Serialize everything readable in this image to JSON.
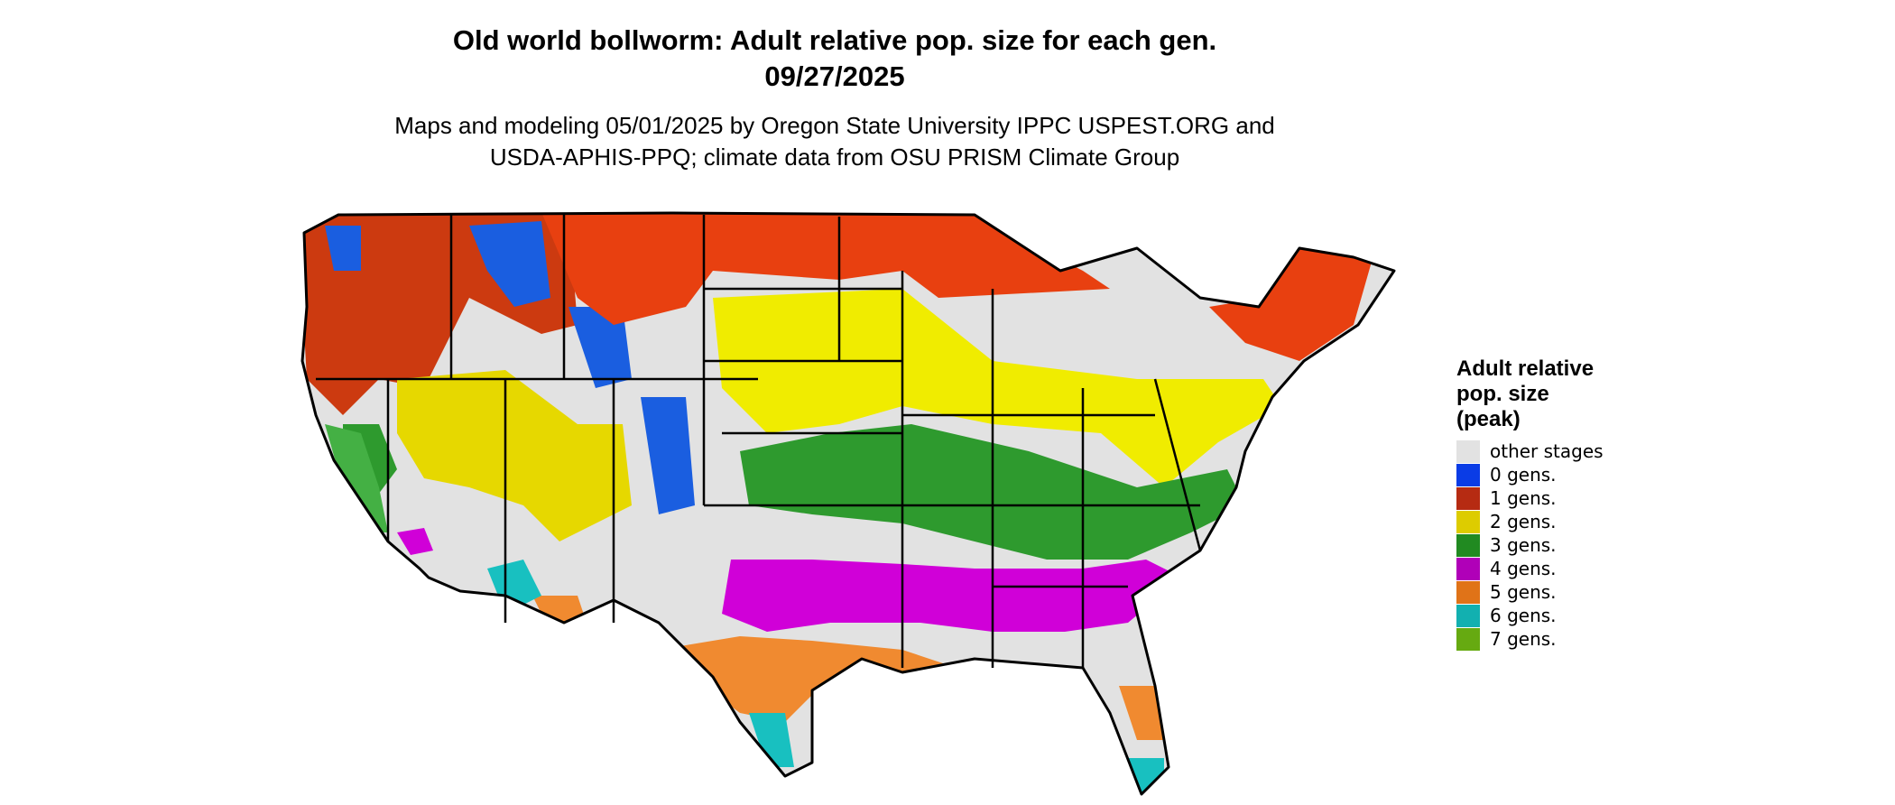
{
  "title_line1": "Old world bollworm: Adult relative pop. size for each gen.",
  "title_line2": "09/27/2025",
  "subtitle_line1": "Maps and modeling 05/01/2025 by Oregon State University IPPC USPEST.ORG and",
  "subtitle_line2": "USDA-APHIS-PPQ; climate data from OSU PRISM Climate Group",
  "legend": {
    "title_line1": "Adult relative",
    "title_line2": "pop. size",
    "title_line3": "(peak)",
    "items": [
      {
        "label": "other stages",
        "color": "#e2e2e2"
      },
      {
        "label": "0 gens.",
        "color": "#0a3ce6"
      },
      {
        "label": "1 gens.",
        "color": "#b62b12"
      },
      {
        "label": "2 gens.",
        "color": "#ddcc00"
      },
      {
        "label": "3 gens.",
        "color": "#218a21"
      },
      {
        "label": "4 gens.",
        "color": "#b000b8"
      },
      {
        "label": "5 gens.",
        "color": "#e07318"
      },
      {
        "label": "6 gens.",
        "color": "#12b0b0"
      },
      {
        "label": "7 gens.",
        "color": "#66aa11"
      }
    ]
  },
  "map_zones": [
    {
      "name": "northwest-zone",
      "color": "#cc3a10"
    },
    {
      "name": "rockies-zone",
      "color": "#1a5ee0"
    },
    {
      "name": "great-basin-zone",
      "color": "#e6d800"
    },
    {
      "name": "northern-plains-zone",
      "color": "#e84010"
    },
    {
      "name": "corn-belt-zone",
      "color": "#f0ec00"
    },
    {
      "name": "mid-south-zone",
      "color": "#2e9a2e"
    },
    {
      "name": "deep-south-zone",
      "color": "#d000d8"
    },
    {
      "name": "gulf-coast-zone",
      "color": "#f08a30"
    },
    {
      "name": "coastal-tip-zone",
      "color": "#18c0c0"
    },
    {
      "name": "west-coast-zone",
      "color": "#44b044"
    }
  ]
}
